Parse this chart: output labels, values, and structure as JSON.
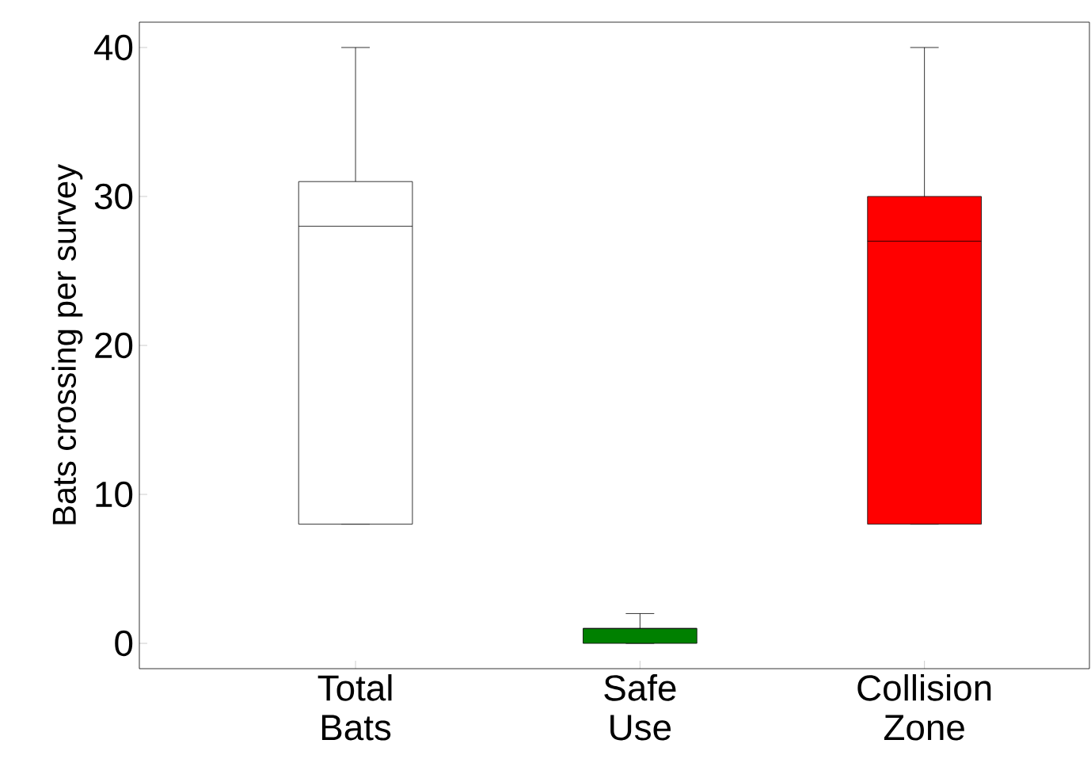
{
  "chart_data": {
    "type": "box",
    "ylabel": "Bats crossing per survey",
    "categories": [
      "Total Bats",
      "Safe Use",
      "Collision Zone"
    ],
    "boxes": [
      {
        "low": 8,
        "q1": 8,
        "median": 28,
        "q3": 31,
        "high": 40
      },
      {
        "low": 0,
        "q1": 0,
        "median": 1,
        "q3": 1,
        "high": 2
      },
      {
        "low": 8,
        "q1": 8,
        "median": 27,
        "q3": 30,
        "high": 40
      }
    ],
    "colors": [
      "#ffffff",
      "#008000",
      "#ff0000"
    ],
    "ylim": [
      -1.7,
      41.7
    ],
    "yticks": [
      0,
      10,
      20,
      30,
      40
    ],
    "grid": false
  }
}
